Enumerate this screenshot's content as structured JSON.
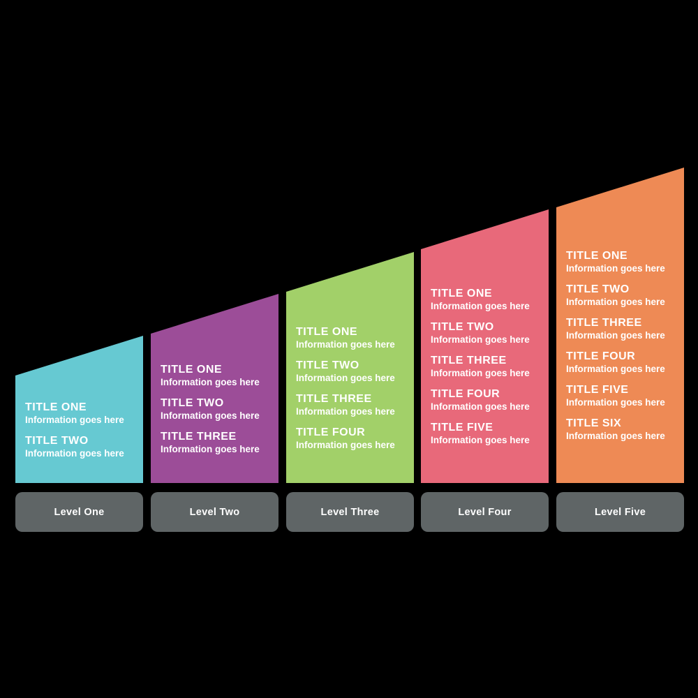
{
  "diagram": {
    "background": "#000000",
    "text_color": "#ffffff",
    "label_bar": {
      "color": "#5f6566",
      "text_color": "#ffffff"
    },
    "columns": [
      {
        "label": "Level One",
        "color": "#66c9d2",
        "items": [
          {
            "title": "TITLE ONE",
            "info": "Information goes here"
          },
          {
            "title": "TITLE TWO",
            "info": "Information goes here"
          }
        ]
      },
      {
        "label": "Level Two",
        "color": "#9c4d98",
        "items": [
          {
            "title": "TITLE ONE",
            "info": "Information goes here"
          },
          {
            "title": "TITLE TWO",
            "info": "Information goes here"
          },
          {
            "title": "TITLE THREE",
            "info": "Information goes here"
          }
        ]
      },
      {
        "label": "Level Three",
        "color": "#a2d069",
        "items": [
          {
            "title": "TITLE ONE",
            "info": "Information goes here"
          },
          {
            "title": "TITLE TWO",
            "info": "Information goes here"
          },
          {
            "title": "TITLE THREE",
            "info": "Information goes here"
          },
          {
            "title": "TITLE FOUR",
            "info": "Information goes here"
          }
        ]
      },
      {
        "label": "Level Four",
        "color": "#e8697a",
        "items": [
          {
            "title": "TITLE ONE",
            "info": "Information goes here"
          },
          {
            "title": "TITLE TWO",
            "info": "Information goes here"
          },
          {
            "title": "TITLE THREE",
            "info": "Information goes here"
          },
          {
            "title": "TITLE FOUR",
            "info": "Information goes here"
          },
          {
            "title": "TITLE FIVE",
            "info": "Information goes here"
          }
        ]
      },
      {
        "label": "Level Five",
        "color": "#ee8a55",
        "items": [
          {
            "title": "TITLE ONE",
            "info": "Information goes here"
          },
          {
            "title": "TITLE TWO",
            "info": "Information goes here"
          },
          {
            "title": "TITLE THREE",
            "info": "Information goes here"
          },
          {
            "title": "TITLE FOUR",
            "info": "Information goes here"
          },
          {
            "title": "TITLE FIVE",
            "info": "Information goes here"
          },
          {
            "title": "TITLE SIX",
            "info": "Information goes here"
          }
        ]
      }
    ]
  }
}
